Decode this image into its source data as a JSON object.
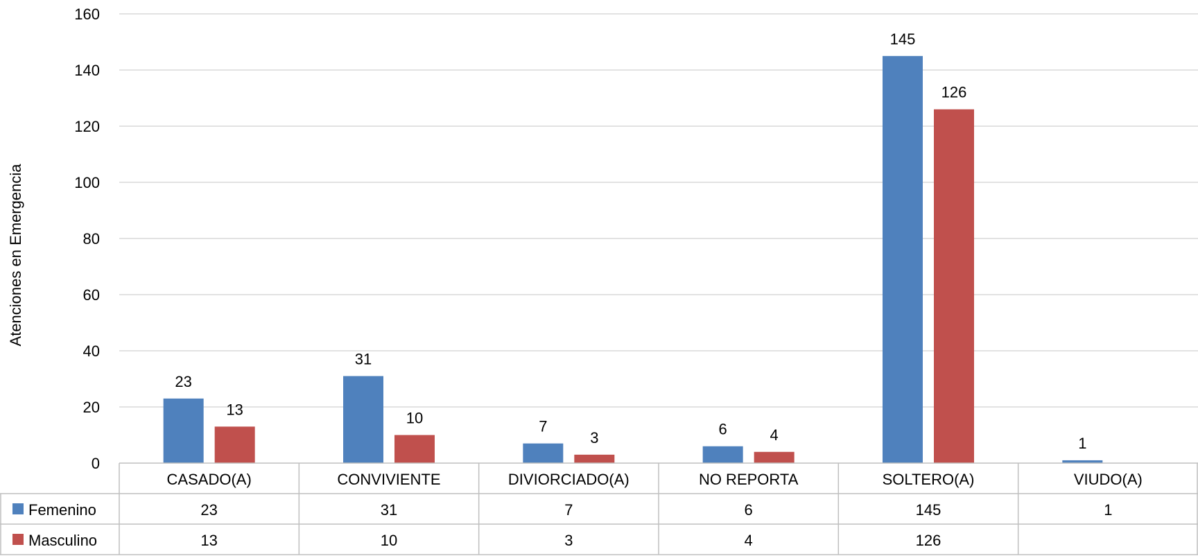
{
  "chart_data": {
    "type": "bar",
    "title": "",
    "xlabel": "",
    "ylabel": "Atenciones en Emergencia",
    "ylim": [
      0,
      160
    ],
    "yticks": [
      0,
      20,
      40,
      60,
      80,
      100,
      120,
      140,
      160
    ],
    "grid": true,
    "legend": "data-table",
    "categories": [
      "CASADO(A)",
      "CONVIVIENTE",
      "DIVIORCIADO(A)",
      "NO REPORTA",
      "SOLTERO(A)",
      "VIUDO(A)"
    ],
    "series": [
      {
        "name": "Femenino",
        "color": "#4F81BD",
        "values": [
          23,
          31,
          7,
          6,
          145,
          1
        ]
      },
      {
        "name": "Masculino",
        "color": "#C0504D",
        "values": [
          13,
          10,
          3,
          4,
          126,
          null
        ]
      }
    ]
  }
}
